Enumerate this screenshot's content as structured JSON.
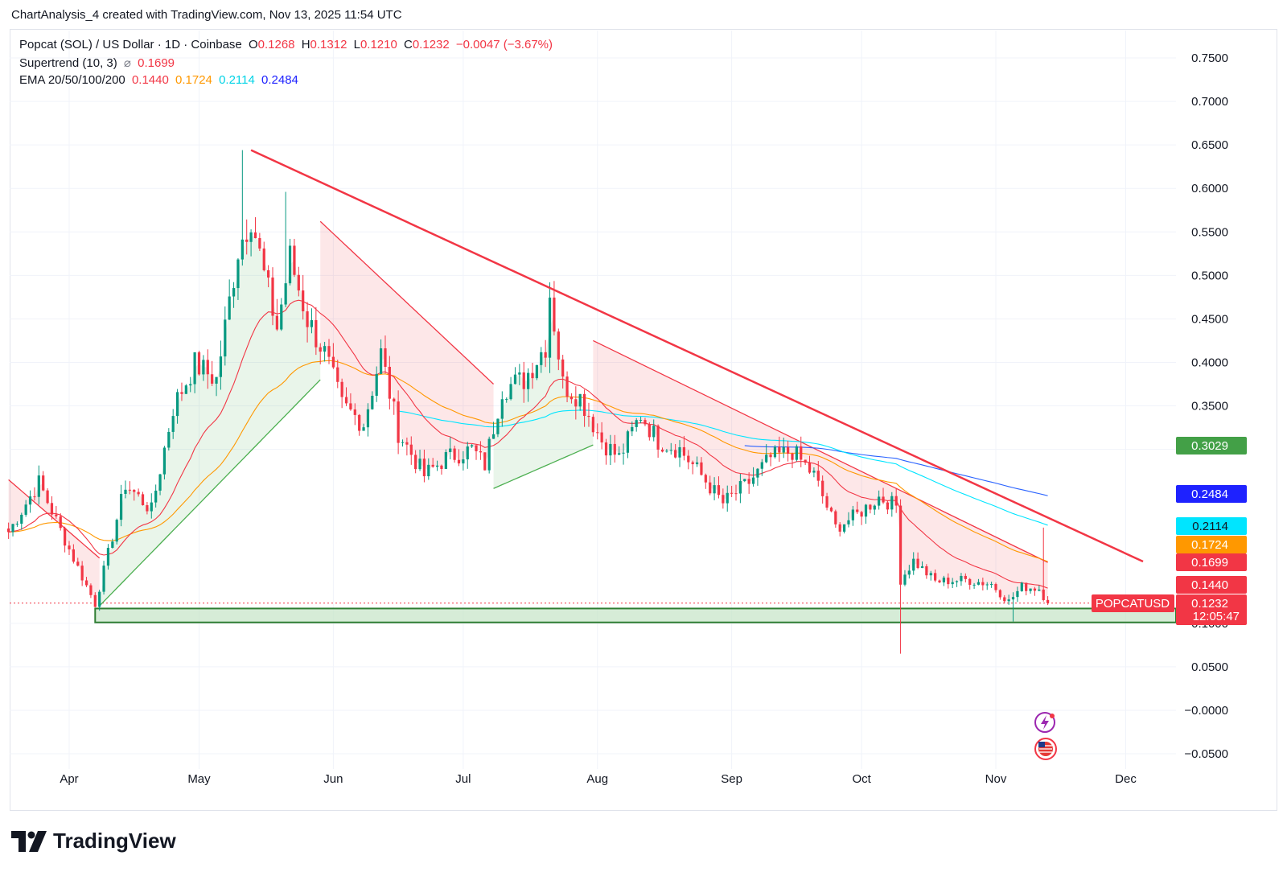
{
  "header": {
    "attribution": "ChartAnalysis_4 created with TradingView.com, Nov 13, 2025 11:54 UTC"
  },
  "legend": {
    "symbol": "Popcat (SOL) / US Dollar · 1D · Coinbase",
    "o_label": "O",
    "o_value": "0.1268",
    "h_label": "H",
    "h_value": "0.1312",
    "l_label": "L",
    "l_value": "0.1210",
    "c_label": "C",
    "c_value": "0.1232",
    "change": "−0.0047 (−3.67%)",
    "supertrend_label": "Supertrend (10, 3)",
    "supertrend_symbol": "⌀",
    "supertrend_value": "0.1699",
    "ema_label": "EMA 20/50/100/200",
    "ema20": "0.1440",
    "ema50": "0.1724",
    "ema100": "0.2114",
    "ema200": "0.2484"
  },
  "footer": {
    "brand": "TradingView"
  },
  "colors": {
    "up": "#089981",
    "down": "#f23645",
    "trendline": "#f23645",
    "ema20": "#f23645",
    "ema50": "#ff9800",
    "ema100": "#00e5ff",
    "ema200": "#2962ff",
    "supertrend_up": "#4caf50",
    "supertrend_down": "#f23645",
    "support_zone": "#c8e6c9",
    "support_border": "#2e7d32"
  },
  "chart_data": {
    "type": "candlestick",
    "y_axis": {
      "min": -0.05,
      "max": 0.75,
      "side": "right",
      "tick_labels": [
        "0.7500",
        "0.7000",
        "0.6500",
        "0.6000",
        "0.5500",
        "0.5000",
        "0.4500",
        "0.4000",
        "0.3500",
        "0.3000",
        "0.1000",
        "0.0500",
        "−0.0000",
        "−0.0500"
      ],
      "tick_values": [
        0.75,
        0.7,
        0.65,
        0.6,
        0.55,
        0.5,
        0.45,
        0.4,
        0.35,
        0.3,
        0.1,
        0.05,
        0.0,
        -0.05
      ]
    },
    "x_axis": {
      "tick_labels": [
        "Apr",
        "May",
        "Jun",
        "Jul",
        "Aug",
        "Sep",
        "Oct",
        "Nov",
        "Dec"
      ]
    },
    "price_badges": [
      {
        "label": "",
        "value": "0.3029",
        "color": "#43a047",
        "price": 0.3029
      },
      {
        "label": "",
        "value": "0.2484",
        "color": "#1e22ff",
        "price": 0.2484
      },
      {
        "label": "",
        "value": "0.2114",
        "color": "#00e5ff",
        "price": 0.2114
      },
      {
        "label": "",
        "value": "0.1724",
        "color": "#ff9800",
        "price": 0.1724
      },
      {
        "label": "",
        "value": "0.1699",
        "color": "#f23645",
        "price": 0.1699
      },
      {
        "label": "",
        "value": "0.1440",
        "color": "#f23645",
        "price": 0.144
      },
      {
        "label": "POPCATUSD",
        "value": "0.1232",
        "countdown": "12:05:47",
        "color": "#f23645",
        "price": 0.1232
      }
    ],
    "trendline": {
      "from": {
        "date": "2025-05-13",
        "price": 0.644
      },
      "to": {
        "date": "2025-12-05",
        "price": 0.171
      }
    },
    "support_zone": {
      "from_date": "2025-04-07",
      "top": 0.117,
      "bottom": 0.101
    },
    "anchors": [
      [
        "2025-03-18",
        0.205
      ],
      [
        "2025-03-25",
        0.262
      ],
      [
        "2025-04-01",
        0.185
      ],
      [
        "2025-04-07",
        0.122
      ],
      [
        "2025-04-10",
        0.18
      ],
      [
        "2025-04-14",
        0.26
      ],
      [
        "2025-04-20",
        0.23
      ],
      [
        "2025-04-25",
        0.348
      ],
      [
        "2025-04-30",
        0.398
      ],
      [
        "2025-05-05",
        0.38
      ],
      [
        "2025-05-10",
        0.53
      ],
      [
        "2025-05-13",
        0.57
      ],
      [
        "2025-05-16",
        0.5
      ],
      [
        "2025-05-19",
        0.44
      ],
      [
        "2025-05-22",
        0.52
      ],
      [
        "2025-05-26",
        0.45
      ],
      [
        "2025-05-30",
        0.41
      ],
      [
        "2025-06-03",
        0.35
      ],
      [
        "2025-06-08",
        0.33
      ],
      [
        "2025-06-12",
        0.41
      ],
      [
        "2025-06-16",
        0.32
      ],
      [
        "2025-06-22",
        0.27
      ],
      [
        "2025-06-27",
        0.29
      ],
      [
        "2025-07-03",
        0.3
      ],
      [
        "2025-07-06",
        0.282
      ],
      [
        "2025-07-10",
        0.37
      ],
      [
        "2025-07-15",
        0.38
      ],
      [
        "2025-07-20",
        0.42
      ],
      [
        "2025-07-21",
        0.48
      ],
      [
        "2025-07-24",
        0.375
      ],
      [
        "2025-07-28",
        0.36
      ],
      [
        "2025-08-02",
        0.31
      ],
      [
        "2025-08-06",
        0.29
      ],
      [
        "2025-08-11",
        0.34
      ],
      [
        "2025-08-15",
        0.31
      ],
      [
        "2025-08-20",
        0.3
      ],
      [
        "2025-08-25",
        0.27
      ],
      [
        "2025-08-30",
        0.238
      ],
      [
        "2025-09-05",
        0.262
      ],
      [
        "2025-09-10",
        0.29
      ],
      [
        "2025-09-15",
        0.298
      ],
      [
        "2025-09-20",
        0.27
      ],
      [
        "2025-09-25",
        0.21
      ],
      [
        "2025-09-30",
        0.225
      ],
      [
        "2025-10-05",
        0.245
      ],
      [
        "2025-10-09",
        0.235
      ],
      [
        "2025-10-10",
        0.15
      ],
      [
        "2025-10-13",
        0.172
      ],
      [
        "2025-10-18",
        0.148
      ],
      [
        "2025-10-25",
        0.15
      ],
      [
        "2025-10-31",
        0.145
      ],
      [
        "2025-11-04",
        0.125
      ],
      [
        "2025-11-07",
        0.142
      ],
      [
        "2025-11-11",
        0.14
      ],
      [
        "2025-11-13",
        0.1232
      ]
    ],
    "special_wicks": [
      {
        "date": "2025-05-11",
        "high": 0.644
      },
      {
        "date": "2025-05-21",
        "high": 0.596
      },
      {
        "date": "2025-07-21",
        "high": 0.492
      },
      {
        "date": "2025-10-10",
        "low": 0.065
      },
      {
        "date": "2025-11-05",
        "low": 0.102
      },
      {
        "date": "2025-11-12",
        "high": 0.21
      }
    ],
    "last_candle": {
      "date": "2025-11-13",
      "open": 0.1268,
      "high": 0.1312,
      "low": 0.121,
      "close": 0.1232
    },
    "supertrend_segments": [
      {
        "dir": "down",
        "from": "2025-03-18",
        "to": "2025-04-08",
        "level": [
          0.265,
          0.175
        ]
      },
      {
        "dir": "up",
        "from": "2025-04-08",
        "to": "2025-05-29",
        "level": [
          0.12,
          0.38
        ]
      },
      {
        "dir": "down",
        "from": "2025-05-29",
        "to": "2025-07-08",
        "level": [
          0.562,
          0.375
        ]
      },
      {
        "dir": "up",
        "from": "2025-07-08",
        "to": "2025-07-31",
        "level": [
          0.255,
          0.305
        ]
      },
      {
        "dir": "down",
        "from": "2025-07-31",
        "to": "2025-11-13",
        "level": [
          0.425,
          0.17
        ]
      }
    ],
    "ema": [
      {
        "name": "EMA 20"
      },
      {
        "name": "EMA 50"
      },
      {
        "name": "EMA 100"
      },
      {
        "name": "EMA 200"
      }
    ]
  }
}
